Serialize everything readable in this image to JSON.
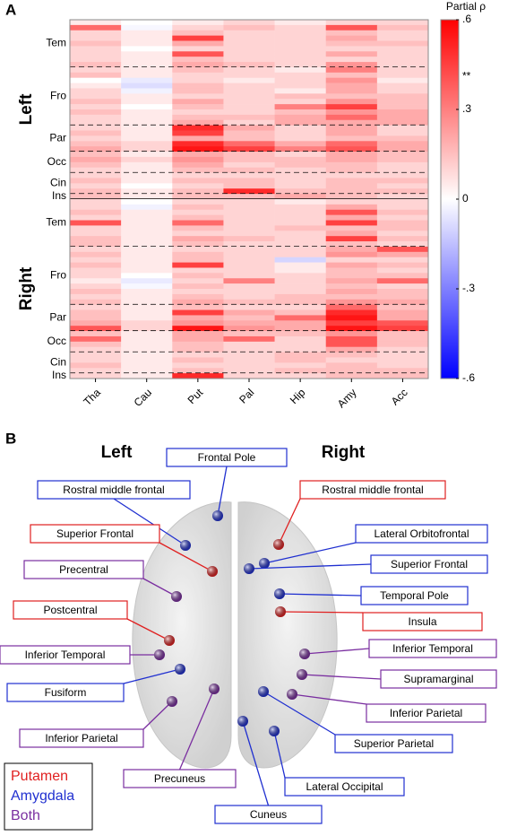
{
  "chart_data": {
    "type": "heatmap",
    "panel_label": "A",
    "colorbar_title": "Partial ρ",
    "categories": [
      "Tha",
      "Cau",
      "Put",
      "Pal",
      "Hip",
      "Amy",
      "Acc"
    ],
    "clim": [
      -0.6,
      0.6
    ],
    "cticks": [
      {
        "value": 0.6,
        "label": ".6"
      },
      {
        "value": 0.3,
        "label": ".3"
      },
      0,
      {
        "value": -0.3,
        "label": "-.3"
      },
      {
        "value": -0.6,
        "label": "-.6"
      }
    ],
    "colormap": [
      "#0000ff",
      "#ffffff",
      "#ff0000"
    ],
    "significance_mark": {
      "label": "**",
      "value": 0.41
    },
    "hemispheres": [
      {
        "name": "Left",
        "lobes": [
          {
            "name": "Tem",
            "rows": [
              [
                0.05,
                0,
                0.05,
                0.1,
                0.05,
                0.1,
                0.1
              ],
              [
                0.35,
                -0.02,
                0.1,
                0.15,
                0.1,
                0.4,
                0.15
              ],
              [
                0.1,
                0.05,
                0.15,
                0.1,
                0.1,
                0.15,
                0.1
              ],
              [
                0.1,
                0.05,
                0.45,
                0.1,
                0.1,
                0.2,
                0.1
              ],
              [
                0.15,
                0.05,
                0.2,
                0.1,
                0.1,
                0.15,
                0.15
              ],
              [
                0.1,
                0,
                0.1,
                0.1,
                0.1,
                0.1,
                0.1
              ],
              [
                0.1,
                0.05,
                0.4,
                0.1,
                0.1,
                0.2,
                0.1
              ],
              [
                0.1,
                0.05,
                0.15,
                0.1,
                0.1,
                0.1,
                0.1
              ],
              [
                0.15,
                0.05,
                0.2,
                0.15,
                0.1,
                0.25,
                0.1
              ]
            ]
          },
          {
            "name": "Fro",
            "rows": [
              [
                0.1,
                0.05,
                0.15,
                0.1,
                0.05,
                0.3,
                0.1
              ],
              [
                0.15,
                0.05,
                0.1,
                0.1,
                0.1,
                0.15,
                0.1
              ],
              [
                0,
                -0.05,
                0.1,
                0.05,
                0.1,
                0.25,
                0.05
              ],
              [
                0.05,
                -0.08,
                0.15,
                0.1,
                0.1,
                0.2,
                0.1
              ],
              [
                0.1,
                -0.03,
                0.15,
                0.1,
                0.05,
                0.2,
                0.1
              ],
              [
                0.1,
                0.05,
                0.1,
                0.1,
                0.15,
                0.15,
                0.15
              ],
              [
                0.15,
                0.05,
                0.2,
                0.1,
                0.1,
                0.25,
                0.15
              ],
              [
                0.1,
                0,
                0.15,
                0.1,
                0.3,
                0.45,
                0.15
              ],
              [
                0.15,
                0.05,
                0.1,
                0.1,
                0.15,
                0.25,
                0.2
              ],
              [
                0.1,
                0.05,
                0.15,
                0.15,
                0.2,
                0.35,
                0.2
              ],
              [
                0.1,
                0.05,
                0.2,
                0.1,
                0.2,
                0.2,
                0.2
              ]
            ]
          },
          {
            "name": "Par",
            "rows": [
              [
                0.1,
                0.05,
                0.5,
                0.2,
                0.1,
                0.2,
                0.1
              ],
              [
                0.15,
                0.05,
                0.45,
                0.15,
                0.1,
                0.2,
                0.1
              ],
              [
                0.1,
                0.05,
                0.2,
                0.15,
                0.1,
                0.15,
                0.15
              ],
              [
                0.15,
                0.1,
                0.5,
                0.35,
                0.2,
                0.35,
                0.2
              ],
              [
                0.2,
                0.1,
                0.55,
                0.45,
                0.3,
                0.4,
                0.2
              ]
            ]
          },
          {
            "name": "Occ",
            "rows": [
              [
                0.15,
                0.05,
                0.2,
                0.15,
                0.1,
                0.2,
                0.15
              ],
              [
                0.2,
                0.1,
                0.25,
                0.15,
                0.15,
                0.2,
                0.15
              ],
              [
                0.15,
                0.05,
                0.2,
                0.1,
                0.15,
                0.15,
                0.1
              ],
              [
                0.1,
                0.05,
                0.15,
                0.15,
                0.1,
                0.15,
                0.1
              ]
            ]
          },
          {
            "name": "Cin",
            "rows": [
              [
                0.1,
                0.05,
                0.1,
                0.1,
                0.1,
                0.1,
                0.1
              ],
              [
                0.15,
                0.05,
                0.15,
                0.15,
                0.1,
                0.15,
                0.15
              ],
              [
                0.1,
                0,
                0.1,
                0.15,
                0.1,
                0.15,
                0.1
              ],
              [
                0.15,
                0.05,
                0.15,
                0.5,
                0.15,
                0.15,
                0.15
              ]
            ]
          },
          {
            "name": "Ins",
            "rows": [
              [
                0.15,
                0.05,
                0.15,
                0.15,
                0.2,
                0.15,
                0.1
              ]
            ]
          }
        ]
      },
      {
        "name": "Right",
        "lobes": [
          {
            "name": "Tem",
            "rows": [
              [
                0.1,
                0,
                0.1,
                0.1,
                0.05,
                0.1,
                0.1
              ],
              [
                0.1,
                -0.03,
                0.15,
                0.1,
                0.1,
                0.2,
                0.1
              ],
              [
                0.15,
                0.05,
                0.1,
                0.1,
                0.1,
                0.4,
                0.15
              ],
              [
                0.1,
                0.05,
                0.15,
                0.1,
                0.1,
                0.2,
                0.1
              ],
              [
                0.4,
                0.05,
                0.35,
                0.1,
                0.1,
                0.45,
                0.15
              ],
              [
                0.1,
                0.05,
                0.15,
                0.1,
                0.15,
                0.15,
                0.15
              ],
              [
                0.1,
                0.05,
                0.1,
                0.1,
                0.1,
                0.2,
                0.1
              ],
              [
                0.15,
                0.05,
                0.2,
                0.15,
                0.1,
                0.45,
                0.15
              ],
              [
                0.15,
                0.05,
                0.15,
                0.1,
                0.1,
                0.15,
                0.1
              ]
            ]
          },
          {
            "name": "Fro",
            "rows": [
              [
                0.1,
                0.05,
                0.1,
                0.1,
                0.1,
                0.2,
                0.4
              ],
              [
                0.15,
                0.05,
                0.15,
                0.1,
                0.1,
                0.25,
                0.2
              ],
              [
                0.1,
                0.05,
                0.15,
                0.1,
                -0.1,
                0.1,
                0.1
              ],
              [
                0.15,
                0.05,
                0.45,
                0.1,
                0.05,
                0.2,
                0.15
              ],
              [
                0.1,
                0.05,
                0.1,
                0.1,
                0.05,
                0.15,
                0.1
              ],
              [
                0.1,
                0,
                0.15,
                0.1,
                0.1,
                0.15,
                0.15
              ],
              [
                0.05,
                -0.05,
                0.1,
                0.3,
                0.1,
                0.2,
                0.35
              ],
              [
                0.1,
                -0.02,
                0.15,
                0.1,
                0.1,
                0.15,
                0.1
              ],
              [
                0.15,
                0.05,
                0.1,
                0.1,
                0.1,
                0.2,
                0.15
              ],
              [
                0.1,
                0.05,
                0.15,
                0.1,
                0.15,
                0.15,
                0.15
              ],
              [
                0.15,
                0.05,
                0.2,
                0.15,
                0.15,
                0.25,
                0.2
              ]
            ]
          },
          {
            "name": "Par",
            "rows": [
              [
                0.1,
                0.05,
                0.15,
                0.1,
                0.1,
                0.35,
                0.15
              ],
              [
                0.15,
                0.05,
                0.45,
                0.2,
                0.15,
                0.5,
                0.2
              ],
              [
                0.15,
                0.05,
                0.2,
                0.15,
                0.35,
                0.55,
                0.2
              ],
              [
                0.2,
                0.1,
                0.25,
                0.2,
                0.2,
                0.45,
                0.4
              ],
              [
                0.4,
                0.1,
                0.55,
                0.25,
                0.2,
                0.55,
                0.45
              ]
            ]
          },
          {
            "name": "Occ",
            "rows": [
              [
                0.15,
                0.05,
                0.2,
                0.15,
                0.15,
                0.25,
                0.15
              ],
              [
                0.35,
                0.05,
                0.2,
                0.35,
                0.1,
                0.4,
                0.15
              ],
              [
                0.15,
                0.05,
                0.15,
                0.1,
                0.1,
                0.4,
                0.15
              ],
              [
                0.1,
                0.05,
                0.15,
                0.1,
                0.1,
                0.2,
                0.1
              ]
            ]
          },
          {
            "name": "Cin",
            "rows": [
              [
                0.1,
                0.05,
                0.1,
                0.1,
                0.15,
                0.15,
                0.1
              ],
              [
                0.1,
                0.05,
                0.15,
                0.1,
                0.15,
                0.1,
                0.1
              ],
              [
                0.15,
                0.05,
                0.1,
                0.1,
                0.1,
                0.15,
                0.1
              ],
              [
                0.1,
                0.05,
                0.15,
                0.1,
                0.15,
                0.15,
                0.15
              ]
            ]
          },
          {
            "name": "Ins",
            "rows": [
              [
                0.1,
                0.05,
                0.5,
                0.1,
                0.1,
                0.15,
                0.15
              ]
            ]
          }
        ]
      }
    ]
  },
  "brain_map": {
    "panel_label": "B",
    "hemisphere_labels": [
      "Left",
      "Right"
    ],
    "legend": [
      {
        "name": "Putamen",
        "color": "#e02020"
      },
      {
        "name": "Amygdala",
        "color": "#2030d0"
      },
      {
        "name": "Both",
        "color": "#7a2ea0"
      }
    ],
    "regions": [
      {
        "label": "Frontal Pole",
        "group": "Amygdala"
      },
      {
        "label": "Rostral middle frontal",
        "group": "Amygdala"
      },
      {
        "label": "Rostral middle frontal",
        "group": "Putamen"
      },
      {
        "label": "Superior Frontal",
        "group": "Putamen"
      },
      {
        "label": "Lateral Orbitofrontal",
        "group": "Amygdala"
      },
      {
        "label": "Superior Frontal",
        "group": "Amygdala"
      },
      {
        "label": "Precentral",
        "group": "Both"
      },
      {
        "label": "Temporal Pole",
        "group": "Amygdala"
      },
      {
        "label": "Postcentral",
        "group": "Putamen"
      },
      {
        "label": "Insula",
        "group": "Putamen"
      },
      {
        "label": "Inferior Temporal",
        "group": "Both"
      },
      {
        "label": "Inferior Temporal",
        "group": "Both"
      },
      {
        "label": "Fusiform",
        "group": "Amygdala"
      },
      {
        "label": "Supramarginal",
        "group": "Both"
      },
      {
        "label": "Inferior Parietal",
        "group": "Both"
      },
      {
        "label": "Inferior Parietal",
        "group": "Both"
      },
      {
        "label": "Precuneus",
        "group": "Both"
      },
      {
        "label": "Superior Parietal",
        "group": "Amygdala"
      },
      {
        "label": "Lateral Occipital",
        "group": "Amygdala"
      },
      {
        "label": "Cuneus",
        "group": "Amygdala"
      }
    ]
  }
}
